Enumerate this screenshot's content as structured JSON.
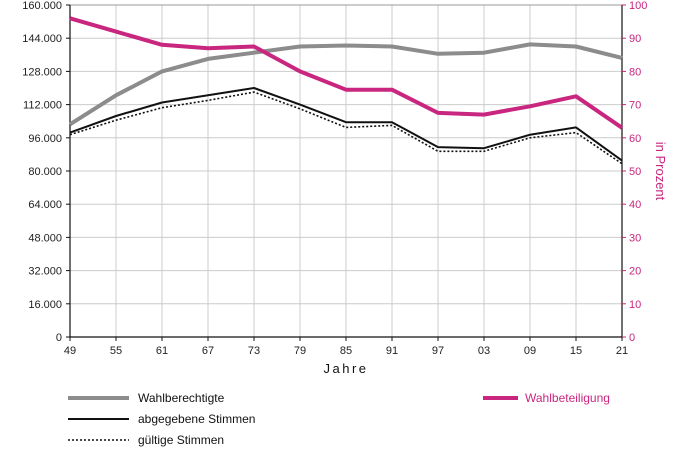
{
  "chart_data": {
    "type": "line",
    "xlabel": "Jahre",
    "y2label": "in Prozent",
    "x": [
      "49",
      "55",
      "61",
      "67",
      "73",
      "79",
      "85",
      "91",
      "97",
      "03",
      "09",
      "15",
      "21"
    ],
    "ylim": [
      0,
      160000
    ],
    "y_ticks": [
      "0",
      "16.000",
      "32.000",
      "48.000",
      "64.000",
      "80.000",
      "96.000",
      "112.000",
      "128.000",
      "144.000",
      "160.000"
    ],
    "y2lim": [
      0,
      100
    ],
    "y2_ticks": [
      "0",
      "10",
      "20",
      "30",
      "40",
      "50",
      "60",
      "70",
      "80",
      "90",
      "100"
    ],
    "grid": true,
    "series": [
      {
        "name": "Wahlberechtigte",
        "axis": "left",
        "color": "#8c8c8c",
        "style": "thick",
        "values": [
          102500,
          116500,
          128000,
          134000,
          137000,
          140000,
          140500,
          140000,
          136500,
          137000,
          141000,
          140000,
          134500
        ]
      },
      {
        "name": "abgegebene Stimmen",
        "axis": "left",
        "color": "#111111",
        "style": "solid",
        "values": [
          98500,
          106500,
          113000,
          116500,
          120000,
          112000,
          103500,
          103500,
          91500,
          91000,
          97500,
          101000,
          85000
        ]
      },
      {
        "name": "gültige Stimmen",
        "axis": "left",
        "color": "#111111",
        "style": "dotted",
        "values": [
          97500,
          104500,
          110500,
          114000,
          118000,
          110000,
          101000,
          102000,
          89500,
          89500,
          96000,
          98500,
          83500
        ]
      },
      {
        "name": "Wahlbeteiligung",
        "axis": "right",
        "color": "#c8267f",
        "style": "thick",
        "values": [
          96,
          92,
          88,
          87,
          87.5,
          80,
          74.5,
          74.5,
          67.5,
          67,
          69.5,
          72.5,
          63
        ]
      }
    ],
    "legend": {
      "placement": "bottom"
    }
  }
}
